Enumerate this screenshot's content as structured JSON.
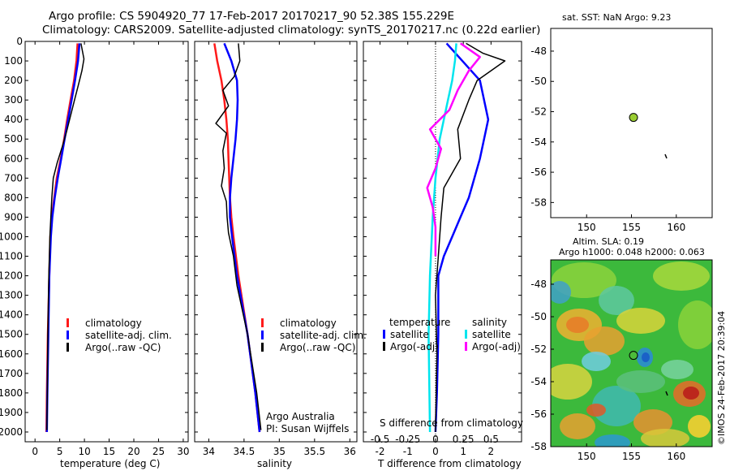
{
  "header": {
    "title_line1": "Argo profile: CS 5904920_77 17-Feb-2017 20170217_90 52.38S 155.229E",
    "title_line2": "Climatology: CARS2009. Satellite-adjusted climatology: synTS_20170217.nc (0.22d earlier)"
  },
  "colors": {
    "climatology": "#ff1a1a",
    "satellite": "#0000ff",
    "argo": "#000000",
    "cyan": "#00e5ee",
    "magenta": "#ff00ff",
    "float_marker": "#9acd32"
  },
  "panels": {
    "temperature": {
      "xlabel": "temperature (deg C)",
      "legend": [
        "climatology",
        "satellite-adj. clim.",
        "Argo(..raw -QC)"
      ]
    },
    "salinity": {
      "xlabel": "salinity",
      "legend": [
        "climatology",
        "satellite-adj. clim.",
        "Argo(..raw -QC)"
      ],
      "note_line1": "Argo Australia",
      "note_line2": "PI: Susan Wijffels"
    },
    "difference": {
      "xlabel_top": "S difference from climatology",
      "xlabel_bottom": "T difference from climatology",
      "legend_temperature_title": "temperature",
      "legend_salinity_title": "salinity",
      "legend_satellite": "satellite",
      "legend_argo": "Argo(-adj)"
    },
    "sst_map": {
      "title": "sat. SST: NaN Argo: 9.23",
      "xlim": [
        146,
        164
      ],
      "ylim": [
        -59,
        -46.5
      ],
      "float_position": {
        "lon": 155.229,
        "lat": -52.38
      }
    },
    "sla_map": {
      "title_line1": "Altim. SLA: 0.19",
      "title_line2": "Argo h1000: 0.048 h2000: 0.063",
      "xlim": [
        146,
        164
      ],
      "ylim": [
        -58,
        -46.5
      ],
      "float_position": {
        "lon": 155.229,
        "lat": -52.38
      }
    }
  },
  "watermark": "©IMOS 24-Feb-2017 20:39:04",
  "chart_data": [
    {
      "type": "line",
      "panel": "temperature",
      "xlabel": "temperature (deg C)",
      "xlim": [
        -2,
        31
      ],
      "ylim": [
        0,
        2050
      ],
      "y_reversed": true,
      "xticks": [
        0,
        5,
        10,
        15,
        20,
        25,
        30
      ],
      "yticks": [
        0,
        100,
        200,
        300,
        400,
        500,
        600,
        700,
        800,
        900,
        1000,
        1100,
        1200,
        1300,
        1400,
        1500,
        1600,
        1700,
        1800,
        1900,
        2000
      ],
      "series": [
        {
          "name": "climatology",
          "color": "#ff1a1a",
          "x": [
            8.6,
            8.4,
            7.9,
            7.2,
            6.5,
            5.9,
            5.2,
            4.4,
            3.9,
            3.4,
            3.1,
            2.9,
            2.6,
            2.4,
            2.3
          ],
          "y": [
            10,
            100,
            200,
            300,
            400,
            500,
            600,
            700,
            800,
            900,
            1000,
            1200,
            1500,
            1800,
            2000
          ]
        },
        {
          "name": "satellite-adj. clim.",
          "color": "#0000ff",
          "x": [
            9.0,
            8.7,
            8.1,
            7.4,
            6.7,
            6.0,
            5.3,
            4.6,
            4.0,
            3.5,
            3.2,
            2.9,
            2.7,
            2.5,
            2.4
          ],
          "y": [
            10,
            100,
            200,
            300,
            400,
            500,
            600,
            700,
            800,
            900,
            1000,
            1200,
            1500,
            1800,
            2000
          ]
        },
        {
          "name": "Argo(..raw -QC)",
          "color": "#000000",
          "x": [
            9.3,
            9.9,
            9.5,
            8.8,
            8.0,
            7.2,
            6.4,
            5.5,
            4.5,
            3.7,
            3.4,
            3.2,
            3.0,
            2.8,
            2.6,
            2.5,
            2.4
          ],
          "y": [
            10,
            90,
            150,
            220,
            300,
            380,
            460,
            540,
            620,
            700,
            800,
            900,
            1000,
            1200,
            1500,
            1800,
            1990
          ]
        }
      ]
    },
    {
      "type": "line",
      "panel": "salinity",
      "xlabel": "salinity",
      "xlim": [
        33.8,
        36.1
      ],
      "ylim": [
        0,
        2050
      ],
      "y_reversed": true,
      "xticks": [
        34,
        34.5,
        35,
        35.5,
        36
      ],
      "series": [
        {
          "name": "climatology",
          "color": "#ff1a1a",
          "x": [
            34.08,
            34.12,
            34.18,
            34.22,
            34.25,
            34.27,
            34.28,
            34.29,
            34.3,
            34.32,
            34.35,
            34.42,
            34.55,
            34.66,
            34.72
          ],
          "y": [
            10,
            100,
            200,
            300,
            400,
            500,
            600,
            700,
            800,
            900,
            1000,
            1200,
            1500,
            1800,
            2000
          ]
        },
        {
          "name": "satellite-adj. clim.",
          "color": "#0000ff",
          "x": [
            34.22,
            34.32,
            34.4,
            34.41,
            34.4,
            34.38,
            34.35,
            34.32,
            34.3,
            34.3,
            34.33,
            34.4,
            34.55,
            34.66,
            34.72
          ],
          "y": [
            10,
            100,
            200,
            300,
            400,
            500,
            600,
            700,
            800,
            900,
            1000,
            1200,
            1500,
            1800,
            2000
          ]
        },
        {
          "name": "Argo(..raw -QC)",
          "color": "#000000",
          "x": [
            34.42,
            34.44,
            34.36,
            34.2,
            34.28,
            34.1,
            34.25,
            34.2,
            34.22,
            34.18,
            34.25,
            34.26,
            34.28,
            34.35,
            34.4,
            34.55,
            34.68,
            34.74
          ],
          "y": [
            10,
            100,
            180,
            250,
            330,
            420,
            470,
            560,
            650,
            740,
            820,
            900,
            980,
            1100,
            1250,
            1500,
            1800,
            1990
          ]
        }
      ]
    },
    {
      "type": "line",
      "panel": "difference",
      "xlabel_top": "S difference from climatology",
      "xlabel_bottom": "T difference from climatology",
      "xlim": [
        -2.6,
        3.1
      ],
      "ylim": [
        0,
        2050
      ],
      "y_reversed": true,
      "xticks_bottom": [
        -2,
        -1,
        0,
        1,
        2
      ],
      "xticks_top": [
        "-0.5",
        "-0.25",
        "0",
        "0.25",
        "0.5"
      ],
      "series": [
        {
          "name": "temperature satellite",
          "color": "#0000ff",
          "x": [
            0.4,
            1.6,
            1.9,
            1.6,
            1.2,
            0.9,
            0.6,
            0.3,
            0.1,
            0.1,
            0.1,
            0.05,
            0.0
          ],
          "y": [
            10,
            200,
            400,
            600,
            800,
            900,
            1000,
            1100,
            1200,
            1300,
            1500,
            1800,
            2000
          ]
        },
        {
          "name": "temperature Argo(-adj)",
          "color": "#000000",
          "x": [
            1.1,
            1.7,
            2.5,
            1.5,
            1.2,
            0.8,
            0.9,
            0.3,
            0.2,
            0.1,
            0.0,
            0.05,
            0.0
          ],
          "y": [
            10,
            60,
            100,
            200,
            300,
            450,
            600,
            750,
            900,
            1100,
            1300,
            1600,
            2000
          ]
        },
        {
          "name": "salinity satellite",
          "color": "#00e5ee",
          "x": [
            0.75,
            0.7,
            0.6,
            0.45,
            0.3,
            0.15,
            0.0,
            -0.1,
            -0.2,
            -0.25,
            -0.2
          ],
          "y": [
            10,
            100,
            200,
            300,
            400,
            500,
            700,
            900,
            1200,
            1500,
            2000
          ]
        },
        {
          "name": "salinity Argo(-adj)",
          "color": "#ff00ff",
          "x": [
            0.9,
            1.6,
            1.2,
            0.8,
            0.5,
            -0.2,
            0.2,
            0.0,
            -0.3,
            -0.1,
            0.0,
            0.0
          ],
          "y": [
            10,
            80,
            150,
            250,
            350,
            450,
            550,
            650,
            750,
            850,
            950,
            1100
          ]
        }
      ]
    }
  ]
}
